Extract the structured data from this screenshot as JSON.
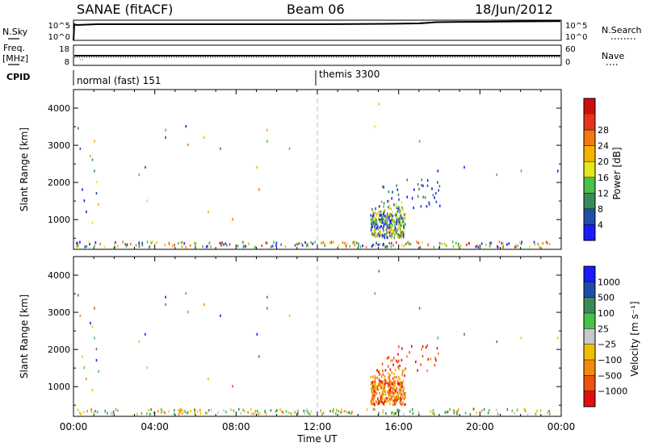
{
  "header": {
    "station": "SANAE (fitACF)",
    "beam": "Beam 06",
    "date": "18/Jun/2012"
  },
  "top_panels": {
    "nsky_label": "N.Sky",
    "nsky_ticks": [
      "10^5",
      "10^0"
    ],
    "nsearch_label": "N.Search",
    "nsearch_ticks": [
      "10^5",
      "10^0"
    ],
    "freq_label_1": "Freq.",
    "freq_label_2": "[MHz]",
    "freq_ticks": [
      "18",
      "8"
    ],
    "nave_label": "Nave",
    "nave_ticks": [
      "60",
      "0"
    ],
    "cpid_label": "CPID",
    "cpid_modes": [
      {
        "name": "normal (fast) 151",
        "start_hour": 0
      },
      {
        "name": "themis 3300",
        "start_hour": 12
      }
    ]
  },
  "colors": {
    "power_scale": [
      "#1a1aff",
      "#1f4ea8",
      "#3a8a5a",
      "#49c24a",
      "#e6e61a",
      "#f5b400",
      "#f07a10",
      "#e8321e",
      "#cc1010"
    ],
    "velocity_scale": [
      "#1a1aff",
      "#1f4ea8",
      "#3a8a5a",
      "#49c24a",
      "#c8c8c8",
      "#f0c000",
      "#f08a10",
      "#f05010",
      "#e01010"
    ]
  },
  "chart_data": [
    {
      "type": "heatmap",
      "name": "power",
      "ylabel": "Slant Range [km]",
      "yticks": [
        "1000",
        "2000",
        "3000",
        "4000"
      ],
      "ylim": [
        200,
        4500
      ],
      "xlim": [
        0,
        24
      ],
      "colorbar_label": "Power [dB]",
      "colorbar_ticks": [
        "4",
        "8",
        "12",
        "16",
        "20",
        "24",
        "28"
      ]
    },
    {
      "type": "heatmap",
      "name": "velocity",
      "ylabel": "Slant Range [km]",
      "yticks": [
        "1000",
        "2000",
        "3000",
        "4000"
      ],
      "ylim": [
        200,
        4500
      ],
      "xlim": [
        0,
        24
      ],
      "colorbar_label": "Velocity [m s⁻¹]",
      "colorbar_ticks": [
        "1000",
        "500",
        "100",
        "25",
        "−25",
        "−100",
        "−500",
        "−1000"
      ]
    }
  ],
  "xaxis": {
    "label": "Time UT",
    "ticks": [
      "00:00",
      "04:00",
      "08:00",
      "12:00",
      "16:00",
      "20:00",
      "00:00"
    ],
    "tick_hours": [
      0,
      4,
      8,
      12,
      16,
      20,
      24
    ]
  }
}
